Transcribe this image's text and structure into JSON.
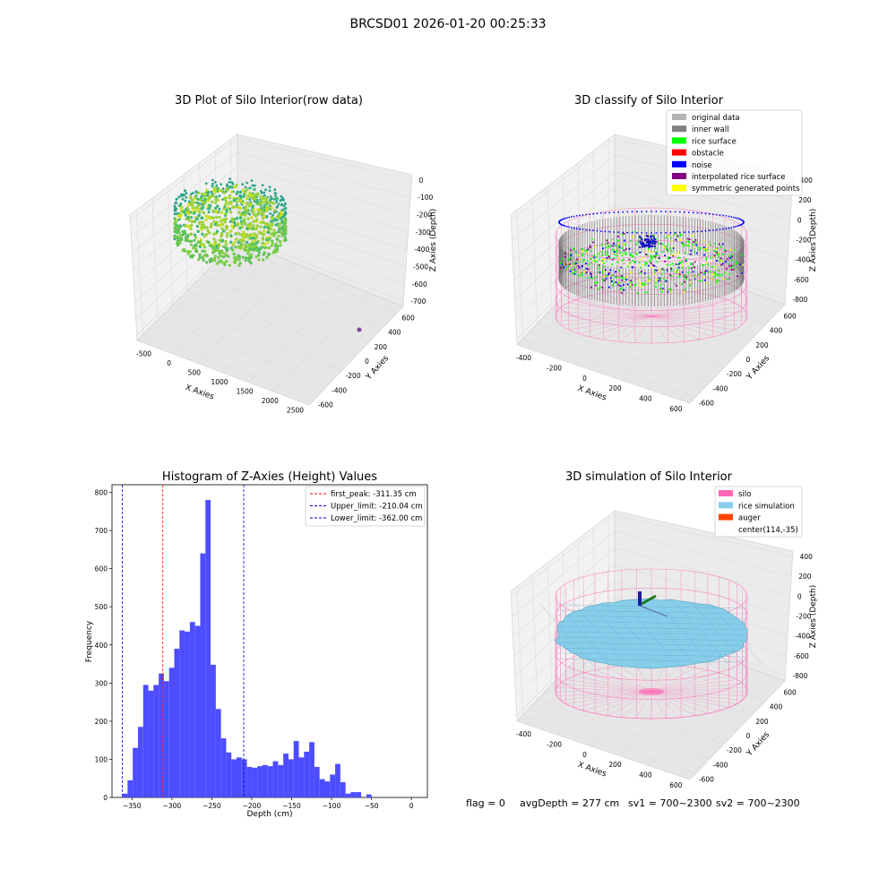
{
  "figure_title": "BRCSD01 2026-01-20 00:25:33",
  "footer": {
    "flag": "flag = 0",
    "avg_depth": "avgDepth = 277 cm",
    "sv1": "sv1 = 700~2300",
    "sv2": "sv2 = 700~2300"
  },
  "colors": {
    "bar": "#4d4dff",
    "peak_line": "#ff0000",
    "limit_line": "#0000cc",
    "silo": "#ff69b4",
    "rice_sim": "#87ceeb",
    "auger": "#ff4500",
    "original_data": "#b3b3b3",
    "inner_wall": "#808080",
    "rice_surface": "#00ff00",
    "obstacle": "#ff0000",
    "noise": "#0000ff",
    "interpolated": "#800080",
    "symmetric": "#ffff00",
    "pane": "#f2f2f2",
    "grid": "#dcdcdc"
  },
  "chart_data": [
    {
      "type": "scatter",
      "title": "3D Plot of Silo Interior(row data)",
      "xlabel": "X Axies",
      "ylabel": "Y Axies",
      "zlabel": "Z Axies (Depth)",
      "x_ticks": [
        "-500",
        "0",
        "500",
        "1000",
        "1500",
        "2000",
        "2500"
      ],
      "y_ticks": [
        "-600",
        "-400",
        "-200",
        "0",
        "200",
        "400",
        "600"
      ],
      "z_ticks": [
        "0",
        "-100",
        "-200",
        "-300",
        "-400",
        "-500",
        "-600",
        "-700"
      ],
      "xlim": [
        -500,
        2500
      ],
      "ylim": [
        -600,
        600
      ],
      "zlim": [
        -750,
        50
      ]
    },
    {
      "type": "scatter",
      "title": "3D classify of Silo Interior",
      "xlabel": "X Axies",
      "ylabel": "Y Axies",
      "zlabel": "Z Axies (Depth)",
      "x_ticks": [
        "-400",
        "-200",
        "0",
        "200",
        "400",
        "600"
      ],
      "y_ticks": [
        "-600",
        "-400",
        "-200",
        "0",
        "200",
        "400",
        "600"
      ],
      "z_ticks": [
        "400",
        "200",
        "0",
        "-200",
        "-400",
        "-600",
        "-800"
      ],
      "legend": [
        "original data",
        "inner wall",
        "rice surface",
        "obstacle",
        "noise",
        "interpolated rice surface",
        "symmetric generated points"
      ],
      "legend_placement": "top-right"
    },
    {
      "type": "bar",
      "title": "Histogram of Z-Axies (Height) Values",
      "xlabel": "Depth (cm)",
      "ylabel": "Frequency",
      "xlim": [
        -375,
        20
      ],
      "ylim": [
        0,
        820
      ],
      "x_ticks": [
        -350,
        -300,
        -250,
        -200,
        -150,
        -100,
        -50,
        0
      ],
      "y_ticks": [
        0,
        100,
        200,
        300,
        400,
        500,
        600,
        700,
        800
      ],
      "bin_start": -362,
      "bin_width": 6.5,
      "values": [
        10,
        45,
        130,
        185,
        295,
        280,
        295,
        325,
        305,
        340,
        390,
        438,
        435,
        460,
        450,
        640,
        780,
        348,
        232,
        155,
        118,
        100,
        105,
        100,
        80,
        78,
        82,
        85,
        82,
        95,
        85,
        115,
        100,
        148,
        105,
        120,
        145,
        80,
        48,
        42,
        60,
        88,
        40,
        10,
        14,
        14,
        0,
        8
      ],
      "lines": [
        {
          "label": "first_peak: -311.35 cm",
          "x": -311.35,
          "color": "#ff0000"
        },
        {
          "label": "Upper_limit: -210.04 cm",
          "x": -210.04,
          "color": "#0000cc"
        },
        {
          "label": "Lower_limit: -362.00 cm",
          "x": -362.0,
          "color": "#0000cc"
        }
      ],
      "legend_placement": "top-right"
    },
    {
      "type": "area",
      "title": "3D simulation of Silo Interior",
      "xlabel": "X Axies",
      "ylabel": "Y Axies",
      "zlabel": "Z Axies (Depth)",
      "x_ticks": [
        "-400",
        "-200",
        "0",
        "200",
        "400",
        "600"
      ],
      "y_ticks": [
        "-600",
        "-400",
        "-200",
        "0",
        "200",
        "400",
        "600"
      ],
      "z_ticks": [
        "400",
        "200",
        "0",
        "-200",
        "-400",
        "-600",
        "-800"
      ],
      "legend": [
        "silo",
        "rice simulation",
        "auger",
        "center(114,-35)"
      ],
      "legend_placement": "top-right"
    }
  ]
}
